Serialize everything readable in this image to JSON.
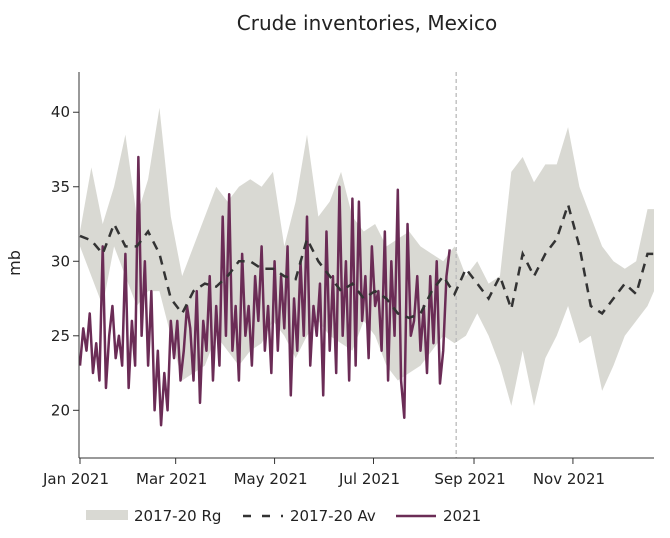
{
  "chart_data": {
    "type": "line",
    "title": "Crude inventories, Mexico",
    "xlabel": "",
    "ylabel": "mb",
    "x_units": "days since Jan 1 2021",
    "xlim": [
      0,
      354
    ],
    "ylim": [
      16.8,
      42.7
    ],
    "yticks": [
      20,
      25,
      30,
      35,
      40
    ],
    "xticks": [
      {
        "day": 0,
        "label": "Jan 2021"
      },
      {
        "day": 59,
        "label": "Mar 2021"
      },
      {
        "day": 120,
        "label": "May 2021"
      },
      {
        "day": 181,
        "label": "Jul 2021"
      },
      {
        "day": 243,
        "label": "Sep 2021"
      },
      {
        "day": 304,
        "label": "Nov 2021"
      }
    ],
    "vline_day": 232,
    "legend_position": "bottom",
    "grid": false,
    "colors": {
      "range": "#d9d9d3",
      "average": "#333333",
      "current": "#6b2c56",
      "vline": "#bbbbbb"
    },
    "series": [
      {
        "name": "2017-20 Rg",
        "kind": "band",
        "x": [
          0,
          7,
          14,
          21,
          28,
          35,
          42,
          49,
          56,
          63,
          70,
          77,
          84,
          91,
          98,
          105,
          112,
          119,
          126,
          133,
          140,
          147,
          154,
          161,
          168,
          175,
          182,
          189,
          196,
          203,
          210,
          217,
          224,
          231,
          238,
          245,
          252,
          259,
          266,
          273,
          280,
          287,
          294,
          301,
          308,
          315,
          322,
          329,
          336,
          343,
          350,
          354
        ],
        "upper": [
          32,
          36.3,
          32.5,
          35,
          38.5,
          33,
          35.5,
          40.3,
          33,
          29,
          31,
          33,
          35,
          34,
          35,
          35.5,
          35,
          36,
          31,
          34,
          38.5,
          33,
          34,
          36,
          33,
          32,
          32.5,
          31,
          31.5,
          32,
          31,
          30.5,
          30,
          31,
          29,
          30,
          28.5,
          29,
          36,
          37,
          35.3,
          36.5,
          36.5,
          39,
          35,
          33,
          31,
          30,
          29.5,
          30,
          33.5,
          33.5
        ],
        "lower": [
          31,
          29,
          27,
          31,
          29,
          27,
          28,
          28,
          25,
          22,
          22.5,
          23,
          25,
          24,
          23,
          24,
          24.5,
          26,
          25,
          23.5,
          25,
          26,
          25,
          24.5,
          24,
          26,
          25,
          23,
          22,
          22.5,
          23,
          24,
          25,
          24.5,
          25,
          26.5,
          25,
          23,
          20.3,
          24,
          20.3,
          23.5,
          25,
          27,
          24.5,
          25,
          21.3,
          23,
          25,
          26,
          27,
          28
        ]
      },
      {
        "name": "2017-20 Av",
        "kind": "dashed",
        "x": [
          0,
          7,
          14,
          21,
          28,
          35,
          42,
          49,
          56,
          63,
          70,
          77,
          84,
          91,
          98,
          105,
          112,
          119,
          126,
          133,
          140,
          147,
          154,
          161,
          168,
          175,
          182,
          189,
          196,
          203,
          210,
          217,
          224,
          231,
          238,
          245,
          252,
          259,
          266,
          273,
          280,
          287,
          294,
          301,
          308,
          315,
          322,
          329,
          336,
          343,
          350,
          354
        ],
        "values": [
          31.7,
          31.4,
          30.5,
          32.5,
          31,
          31,
          32,
          30.5,
          27.5,
          26.5,
          28,
          28.5,
          28.3,
          29,
          30,
          30,
          29.5,
          29.5,
          29,
          28.8,
          31.5,
          30,
          29,
          28,
          28.5,
          27.5,
          28,
          27.5,
          26.5,
          26.2,
          26.5,
          28,
          29,
          27.8,
          29.5,
          28.5,
          27.5,
          29,
          26.8,
          30.5,
          29,
          30.5,
          31.5,
          33.8,
          31,
          27,
          26.5,
          27.5,
          28.5,
          27.8,
          30.5,
          30.5
        ]
      },
      {
        "name": "2021",
        "kind": "line",
        "x_start": 0,
        "x_step": 2,
        "values": [
          23,
          25.5,
          24,
          26.5,
          22.5,
          24.5,
          22,
          31,
          21.5,
          25,
          27,
          23.5,
          25,
          23,
          30.5,
          21.5,
          26,
          23,
          37,
          25,
          30,
          23,
          28,
          20,
          24,
          19,
          22.5,
          20,
          26,
          23.5,
          26,
          22,
          24,
          27,
          25.5,
          22,
          28,
          20.5,
          26,
          24,
          29,
          22,
          27,
          23,
          33,
          25,
          34.5,
          24,
          27,
          22,
          30.5,
          25,
          27,
          23,
          29,
          26,
          31,
          24,
          27,
          22.5,
          30,
          24,
          29,
          25.5,
          31,
          21,
          27.5,
          24,
          30,
          25,
          33,
          23,
          27,
          25,
          28.5,
          21,
          32,
          24,
          29,
          22.5,
          35,
          25,
          30,
          22,
          34.2,
          23,
          34,
          26,
          29,
          23.5,
          31,
          27,
          28,
          24,
          32,
          22,
          30,
          25,
          34.8,
          22,
          19.5,
          32.5,
          25,
          26,
          29,
          24,
          27,
          22.5,
          29,
          24.5,
          30,
          21.8,
          24,
          29,
          30.8
        ]
      }
    ]
  }
}
